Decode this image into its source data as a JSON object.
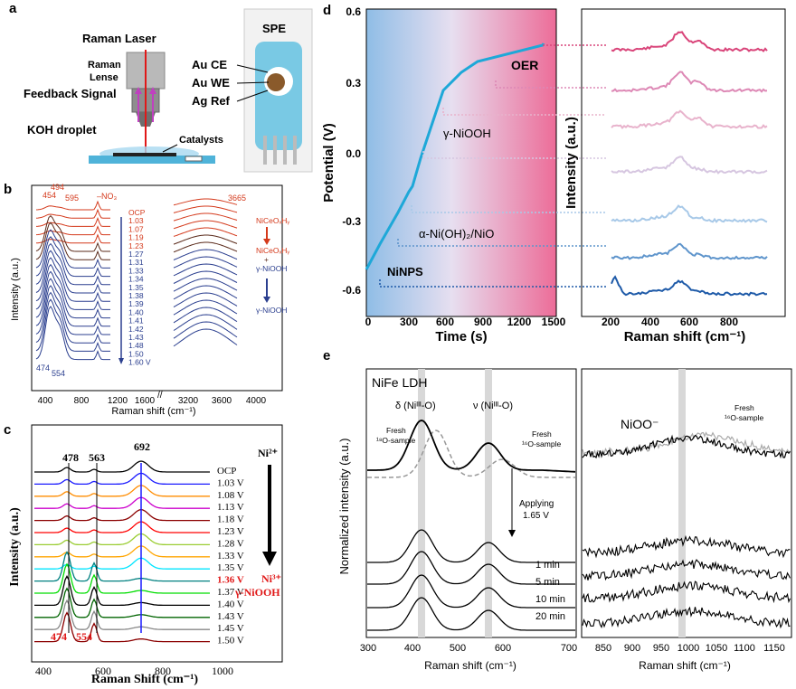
{
  "panel_a": {
    "letter": "a",
    "raman_laser": "Raman Laser",
    "raman": "Raman",
    "lense": "Lense",
    "feedback_signal": "Feedback Signal",
    "koh_droplet": "KOH droplet",
    "catalysts": "Catalysts",
    "spe_label": "SPE",
    "au_ce": "Au CE",
    "au_we": "Au WE",
    "ag_ref": "Ag Ref"
  },
  "panel_b": {
    "letter": "b",
    "ylabel": "Intensity (a.u.)",
    "xlabel": "Raman shift (cm⁻¹)",
    "x_ticks_left": [
      "400",
      "800",
      "1200",
      "1600"
    ],
    "x_ticks_right": [
      "3200",
      "3600",
      "4000"
    ],
    "peak_top": [
      "454",
      "494",
      "595",
      "–NO₃",
      "3665"
    ],
    "peak_bottom": [
      "474",
      "554"
    ],
    "potentials": [
      "OCP",
      "1.03",
      "1.07",
      "1.19",
      "1.23",
      "1.27",
      "1.31",
      "1.33",
      "1.34",
      "1.35",
      "1.38",
      "1.39",
      "1.40",
      "1.41",
      "1.42",
      "1.43",
      "1.48",
      "1.50",
      "1.60 V"
    ],
    "legend": {
      "phase1": "NiCeOₓHᵧ",
      "phase2a": "NiCeOₓHᵧ",
      "plus": "+",
      "phase2b": "γ-NiOOH",
      "phase3": "γ-NiOOH"
    },
    "colors": {
      "early": "#d4391b",
      "transition": "#5a2a1a",
      "late": "#2b3f8f"
    }
  },
  "panel_c": {
    "letter": "c",
    "ylabel": "Intensity (a.u.)",
    "xlabel": "Raman Shift (cm⁻¹)",
    "x_ticks": [
      "400",
      "600",
      "800",
      "1000"
    ],
    "peaks_top": [
      "478",
      "563",
      "692"
    ],
    "peaks_bottom": [
      "474",
      "554"
    ],
    "potentials": [
      "OCP",
      "1.03 V",
      "1.08 V",
      "1.13 V",
      "1.18 V",
      "1.23 V",
      "1.28 V",
      "1.33 V",
      "1.35 V",
      "1.36 V",
      "1.37 V",
      "1.40 V",
      "1.43 V",
      "1.45 V",
      "1.50 V"
    ],
    "highlight_potential": "1.36 V",
    "ni2": "Ni²⁺",
    "ni3": "Ni³⁺",
    "gamma": "γ-NiOOH",
    "colors": [
      "#000000",
      "#1a1aff",
      "#ff8c00",
      "#cc00cc",
      "#8b0000",
      "#ff0000",
      "#9acd32",
      "#ffa500",
      "#00e5ff",
      "#008080",
      "#00dd00",
      "#000000",
      "#006400",
      "#888888",
      "#8b0000"
    ]
  },
  "panel_d": {
    "letter": "d",
    "ylabel": "Potential (V)",
    "xlabel": "Time (s)",
    "y_ticks": [
      "0.6",
      "0.3",
      "0.0",
      "-0.3",
      "-0.6"
    ],
    "x_ticks": [
      "0",
      "300",
      "600",
      "900",
      "1200",
      "1500"
    ],
    "labels": {
      "oer": "OER",
      "gamma": "γ-NiOOH",
      "alpha": "α-Ni(OH)₂/NiO",
      "ninps": "NiNPS"
    },
    "right_ylabel": "Intensity (a.u.)",
    "right_xlabel": "Raman shift (cm⁻¹)",
    "right_x_ticks": [
      "200",
      "400",
      "600",
      "800"
    ],
    "spectra_colors": [
      "#d9457a",
      "#dd88b5",
      "#e8b3cc",
      "#d6c6e0",
      "#a8c9e8",
      "#5f95cc",
      "#1e5aa8"
    ]
  },
  "panel_e": {
    "letter": "e",
    "title": "NiFe LDH",
    "ylabel": "Normalized intensity (a.u.)",
    "xlabel_left": "Raman shift (cm⁻¹)",
    "xlabel_right": "Raman shift (cm⁻¹)",
    "delta": "δ (Niᴵᴵᴵ-O)",
    "nu": "ν (Niᴵᴵᴵ-O)",
    "fresh_18o_line1": "Fresh",
    "fresh_18o_line2": "¹⁸O-sample",
    "fresh_16o_line1": "Fresh",
    "fresh_16o_line2": "¹⁶O-sample",
    "applying_line1": "Applying",
    "applying_line2": "1.65 V",
    "times": [
      "1 min",
      "5 min",
      "10 min",
      "20 min"
    ],
    "nioo": "NiOO⁻",
    "fresh_r_line1": "Fresh",
    "fresh_r_line2": "¹⁶O-sample",
    "x_ticks_left": [
      "300",
      "400",
      "500",
      "600",
      "700"
    ],
    "x_ticks_right": [
      "850",
      "900",
      "950",
      "1000",
      "1050",
      "1100",
      "1150"
    ]
  }
}
